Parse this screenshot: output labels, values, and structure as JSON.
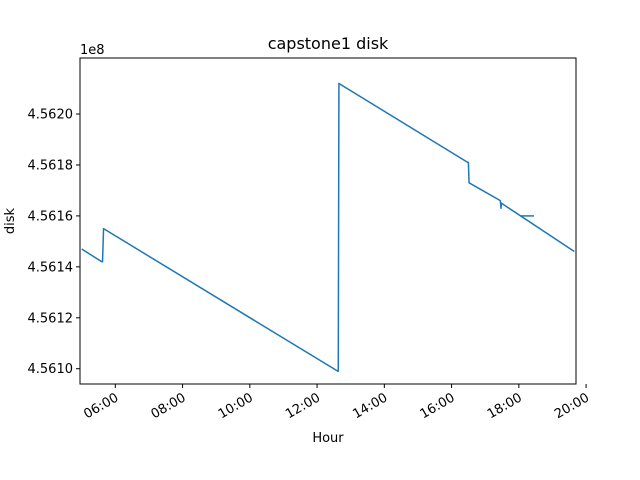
{
  "chart_data": {
    "type": "line",
    "title": "capstone1 disk",
    "xlabel": "Hour",
    "ylabel": "disk",
    "y_offset_label": "1e8",
    "x_unit": "hour of day",
    "xlim": [
      4.95,
      19.7
    ],
    "ylim": [
      4.56094,
      4.56222
    ],
    "x_ticks": [
      6,
      8,
      10,
      12,
      14,
      16,
      18,
      20
    ],
    "x_tick_labels": [
      "06:00",
      "08:00",
      "10:00",
      "12:00",
      "14:00",
      "16:00",
      "18:00",
      "20:00"
    ],
    "y_ticks": [
      4.561,
      4.5612,
      4.5614,
      4.5616,
      4.5618,
      4.562
    ],
    "y_tick_labels": [
      "4.5610",
      "4.5612",
      "4.5614",
      "4.5616",
      "4.5618",
      "4.5620"
    ],
    "grid": false,
    "line_color": "#1f77b4",
    "series": [
      {
        "segments": [
          [
            [
              5.0,
              4.56147
            ],
            [
              5.6,
              4.56142
            ],
            [
              5.62,
              4.56142
            ],
            [
              5.65,
              4.56155
            ],
            [
              12.62,
              4.56099
            ],
            [
              12.63,
              4.56099
            ],
            [
              12.65,
              4.56212
            ],
            [
              16.48,
              4.56181
            ],
            [
              16.5,
              4.56181
            ],
            [
              16.52,
              4.56173
            ],
            [
              17.45,
              4.56166
            ],
            [
              17.47,
              4.56163
            ],
            [
              17.48,
              4.56165
            ],
            [
              19.65,
              4.56146
            ]
          ],
          [
            [
              18.05,
              4.5616
            ],
            [
              18.45,
              4.5616
            ]
          ]
        ]
      }
    ]
  }
}
